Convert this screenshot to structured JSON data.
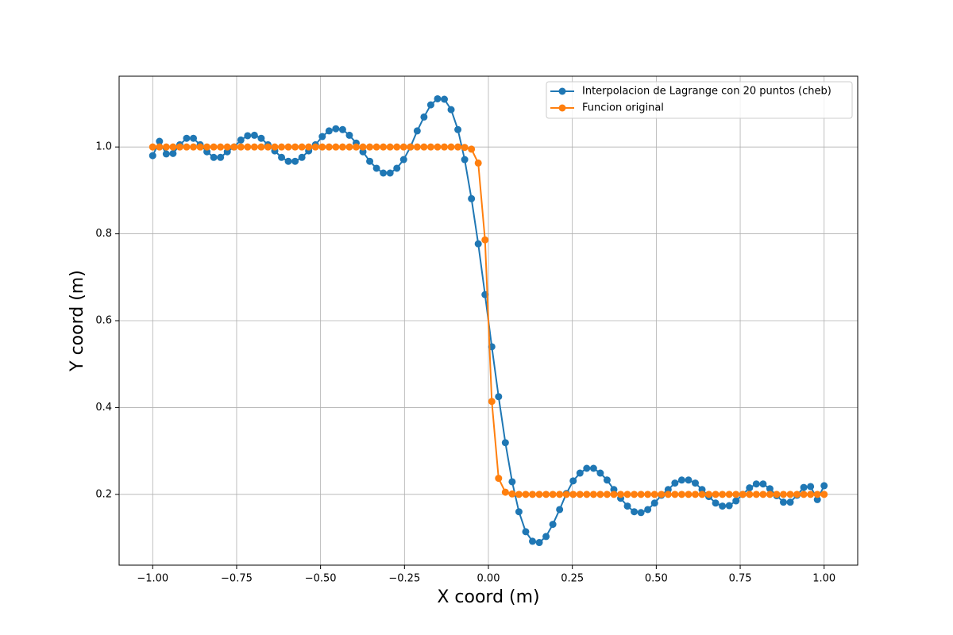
{
  "chart_data": {
    "type": "line",
    "xlabel": "X coord (m)",
    "ylabel": "Y coord (m)",
    "x": [
      -1,
      -0.9798,
      -0.9596,
      -0.9394,
      -0.9192,
      -0.899,
      -0.8788,
      -0.8586,
      -0.8384,
      -0.8182,
      -0.798,
      -0.7778,
      -0.7576,
      -0.7374,
      -0.7172,
      -0.697,
      -0.6768,
      -0.6566,
      -0.6364,
      -0.6162,
      -0.596,
      -0.5758,
      -0.5556,
      -0.5354,
      -0.5152,
      -0.4949,
      -0.4747,
      -0.4545,
      -0.4343,
      -0.4141,
      -0.3939,
      -0.3737,
      -0.3535,
      -0.3333,
      -0.3131,
      -0.2929,
      -0.2727,
      -0.2525,
      -0.2323,
      -0.2121,
      -0.1919,
      -0.1717,
      -0.1515,
      -0.1313,
      -0.1111,
      -0.0909,
      -0.0707,
      -0.0505,
      -0.0303,
      -0.0101,
      0.0101,
      0.0303,
      0.0505,
      0.0707,
      0.0909,
      0.1111,
      0.1313,
      0.1515,
      0.1717,
      0.1919,
      0.2121,
      0.2323,
      0.2525,
      0.2727,
      0.2929,
      0.3131,
      0.3333,
      0.3535,
      0.3737,
      0.3939,
      0.4141,
      0.4343,
      0.4545,
      0.4747,
      0.4949,
      0.5152,
      0.5354,
      0.5556,
      0.5758,
      0.596,
      0.6162,
      0.6364,
      0.6566,
      0.6768,
      0.697,
      0.7172,
      0.7374,
      0.7576,
      0.7778,
      0.798,
      0.8182,
      0.8384,
      0.8586,
      0.8788,
      0.899,
      0.9192,
      0.9394,
      0.9596,
      0.9798,
      1
    ],
    "series": [
      {
        "name": "Interpolacion de Lagrange con 20 puntos (cheb)",
        "color": "#1f77b4",
        "values": [
          0.98,
          1.013,
          0.984,
          0.985,
          1.005,
          1.02,
          1.02,
          1.005,
          0.989,
          0.976,
          0.976,
          0.989,
          1.0,
          1.016,
          1.026,
          1.027,
          1.02,
          1.005,
          0.991,
          0.976,
          0.967,
          0.967,
          0.976,
          0.991,
          1.005,
          1.024,
          1.037,
          1.042,
          1.04,
          1.027,
          1.009,
          0.989,
          0.967,
          0.951,
          0.94,
          0.94,
          0.951,
          0.971,
          1.0,
          1.037,
          1.069,
          1.097,
          1.111,
          1.11,
          1.086,
          1.04,
          0.971,
          0.881,
          0.777,
          0.66,
          0.54,
          0.425,
          0.319,
          0.229,
          0.16,
          0.114,
          0.092,
          0.089,
          0.103,
          0.131,
          0.165,
          0.202,
          0.231,
          0.249,
          0.26,
          0.26,
          0.249,
          0.233,
          0.211,
          0.191,
          0.173,
          0.16,
          0.158,
          0.165,
          0.18,
          0.198,
          0.211,
          0.226,
          0.233,
          0.233,
          0.226,
          0.211,
          0.195,
          0.18,
          0.173,
          0.174,
          0.185,
          0.2,
          0.215,
          0.224,
          0.224,
          0.213,
          0.197,
          0.182,
          0.182,
          0.198,
          0.216,
          0.218,
          0.188,
          0.22
        ]
      },
      {
        "name": "Funcion original",
        "color": "#ff7f0e",
        "values": [
          1.0,
          1.0,
          1.0,
          1.0,
          1.0,
          1.0,
          1.0,
          1.0,
          1.0,
          1.0,
          1.0,
          1.0,
          1.0,
          1.0,
          1.0,
          1.0,
          1.0,
          1.0,
          1.0,
          1.0,
          1.0,
          1.0,
          1.0,
          1.0,
          1.0,
          1.0,
          1.0,
          1.0,
          1.0,
          1.0,
          1.0,
          1.0,
          1.0,
          1.0,
          1.0,
          1.0,
          1.0,
          1.0,
          1.0,
          1.0,
          1.0,
          1.0,
          1.0,
          1.0,
          1.0,
          1.0,
          0.999,
          0.995,
          0.963,
          0.786,
          0.414,
          0.237,
          0.205,
          0.201,
          0.2,
          0.2,
          0.2,
          0.2,
          0.2,
          0.2,
          0.2,
          0.2,
          0.2,
          0.2,
          0.2,
          0.2,
          0.2,
          0.2,
          0.2,
          0.2,
          0.2,
          0.2,
          0.2,
          0.2,
          0.2,
          0.2,
          0.2,
          0.2,
          0.2,
          0.2,
          0.2,
          0.2,
          0.2,
          0.2,
          0.2,
          0.2,
          0.2,
          0.2,
          0.2,
          0.2,
          0.2,
          0.2,
          0.2,
          0.2,
          0.2,
          0.2,
          0.2,
          0.2,
          0.2,
          0.2
        ]
      }
    ],
    "xlim": [
      -1.1,
      1.1
    ],
    "ylim": [
      0.037,
      1.163
    ],
    "xticks": [
      {
        "value": -1,
        "label": "−1.00"
      },
      {
        "value": -0.75,
        "label": "−0.75"
      },
      {
        "value": -0.5,
        "label": "−0.50"
      },
      {
        "value": -0.25,
        "label": "−0.25"
      },
      {
        "value": 0,
        "label": "0.00"
      },
      {
        "value": 0.25,
        "label": "0.25"
      },
      {
        "value": 0.5,
        "label": "0.50"
      },
      {
        "value": 0.75,
        "label": "0.75"
      },
      {
        "value": 1,
        "label": "1.00"
      }
    ],
    "yticks": [
      0.2,
      0.4,
      0.6,
      0.8,
      {
        "value": 1,
        "label": "1.0"
      }
    ],
    "grid": true,
    "legend": "upper right"
  }
}
